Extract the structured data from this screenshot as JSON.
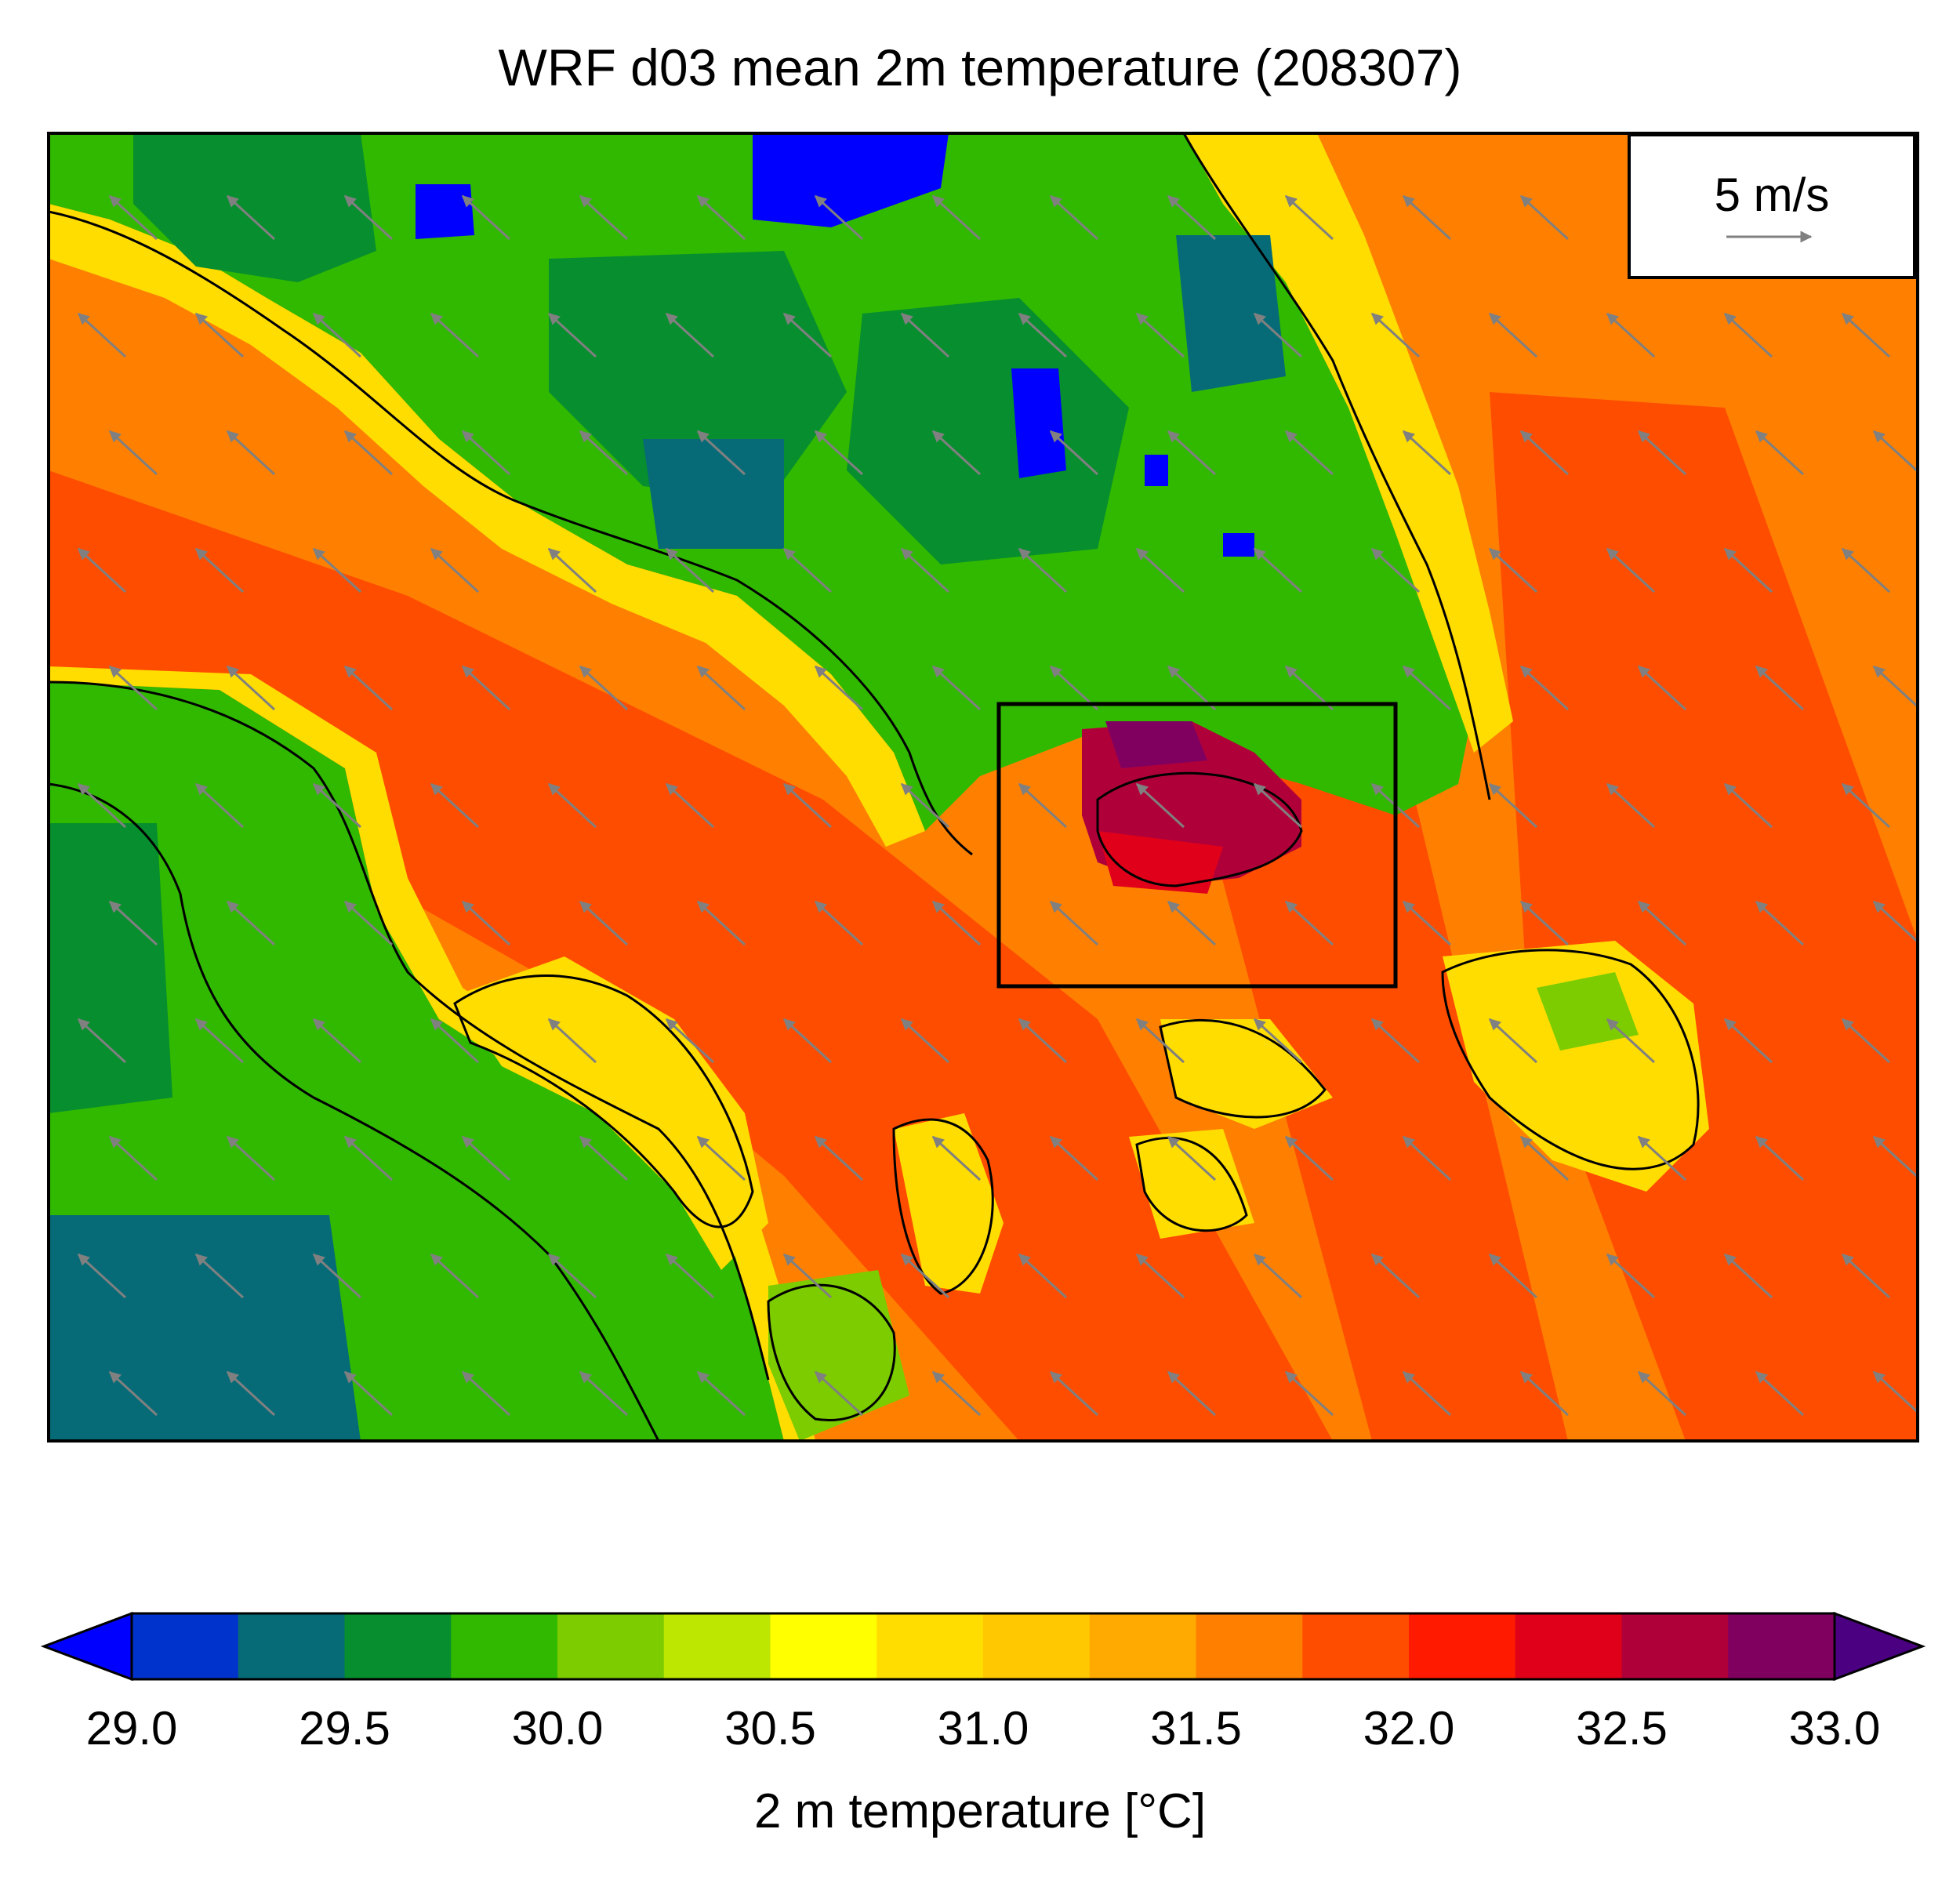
{
  "title": "WRF d03 mean 2m temperature (208307)",
  "reference_vector": {
    "label": "5 m/s",
    "color": "#808080"
  },
  "colorbar": {
    "label": "2 m temperature [°C]",
    "ticks": [
      "29.0",
      "29.5",
      "30.0",
      "30.5",
      "31.0",
      "31.5",
      "32.0",
      "32.5",
      "33.0"
    ],
    "min": 29.0,
    "max": 33.0,
    "step": 0.25,
    "extend": "both",
    "under_color": "#0000ff",
    "over_color": "#4b0082",
    "colors": [
      "#0033cc",
      "#066b77",
      "#078e2e",
      "#31b900",
      "#7ccc00",
      "#bde600",
      "#ffff00",
      "#ffdd00",
      "#ffc800",
      "#ffaa00",
      "#ff8000",
      "#ff4d00",
      "#ff1a00",
      "#e0001a",
      "#b0003a",
      "#800060"
    ]
  },
  "chart_data": {
    "type": "heatmap",
    "title": "WRF d03 mean 2m temperature (208307)",
    "variable": "2 m temperature",
    "units": "°C",
    "value_range": [
      29.0,
      33.0
    ],
    "wind_vectors": {
      "reference": "5 m/s",
      "direction": "northwest"
    },
    "highlight_box": true
  }
}
